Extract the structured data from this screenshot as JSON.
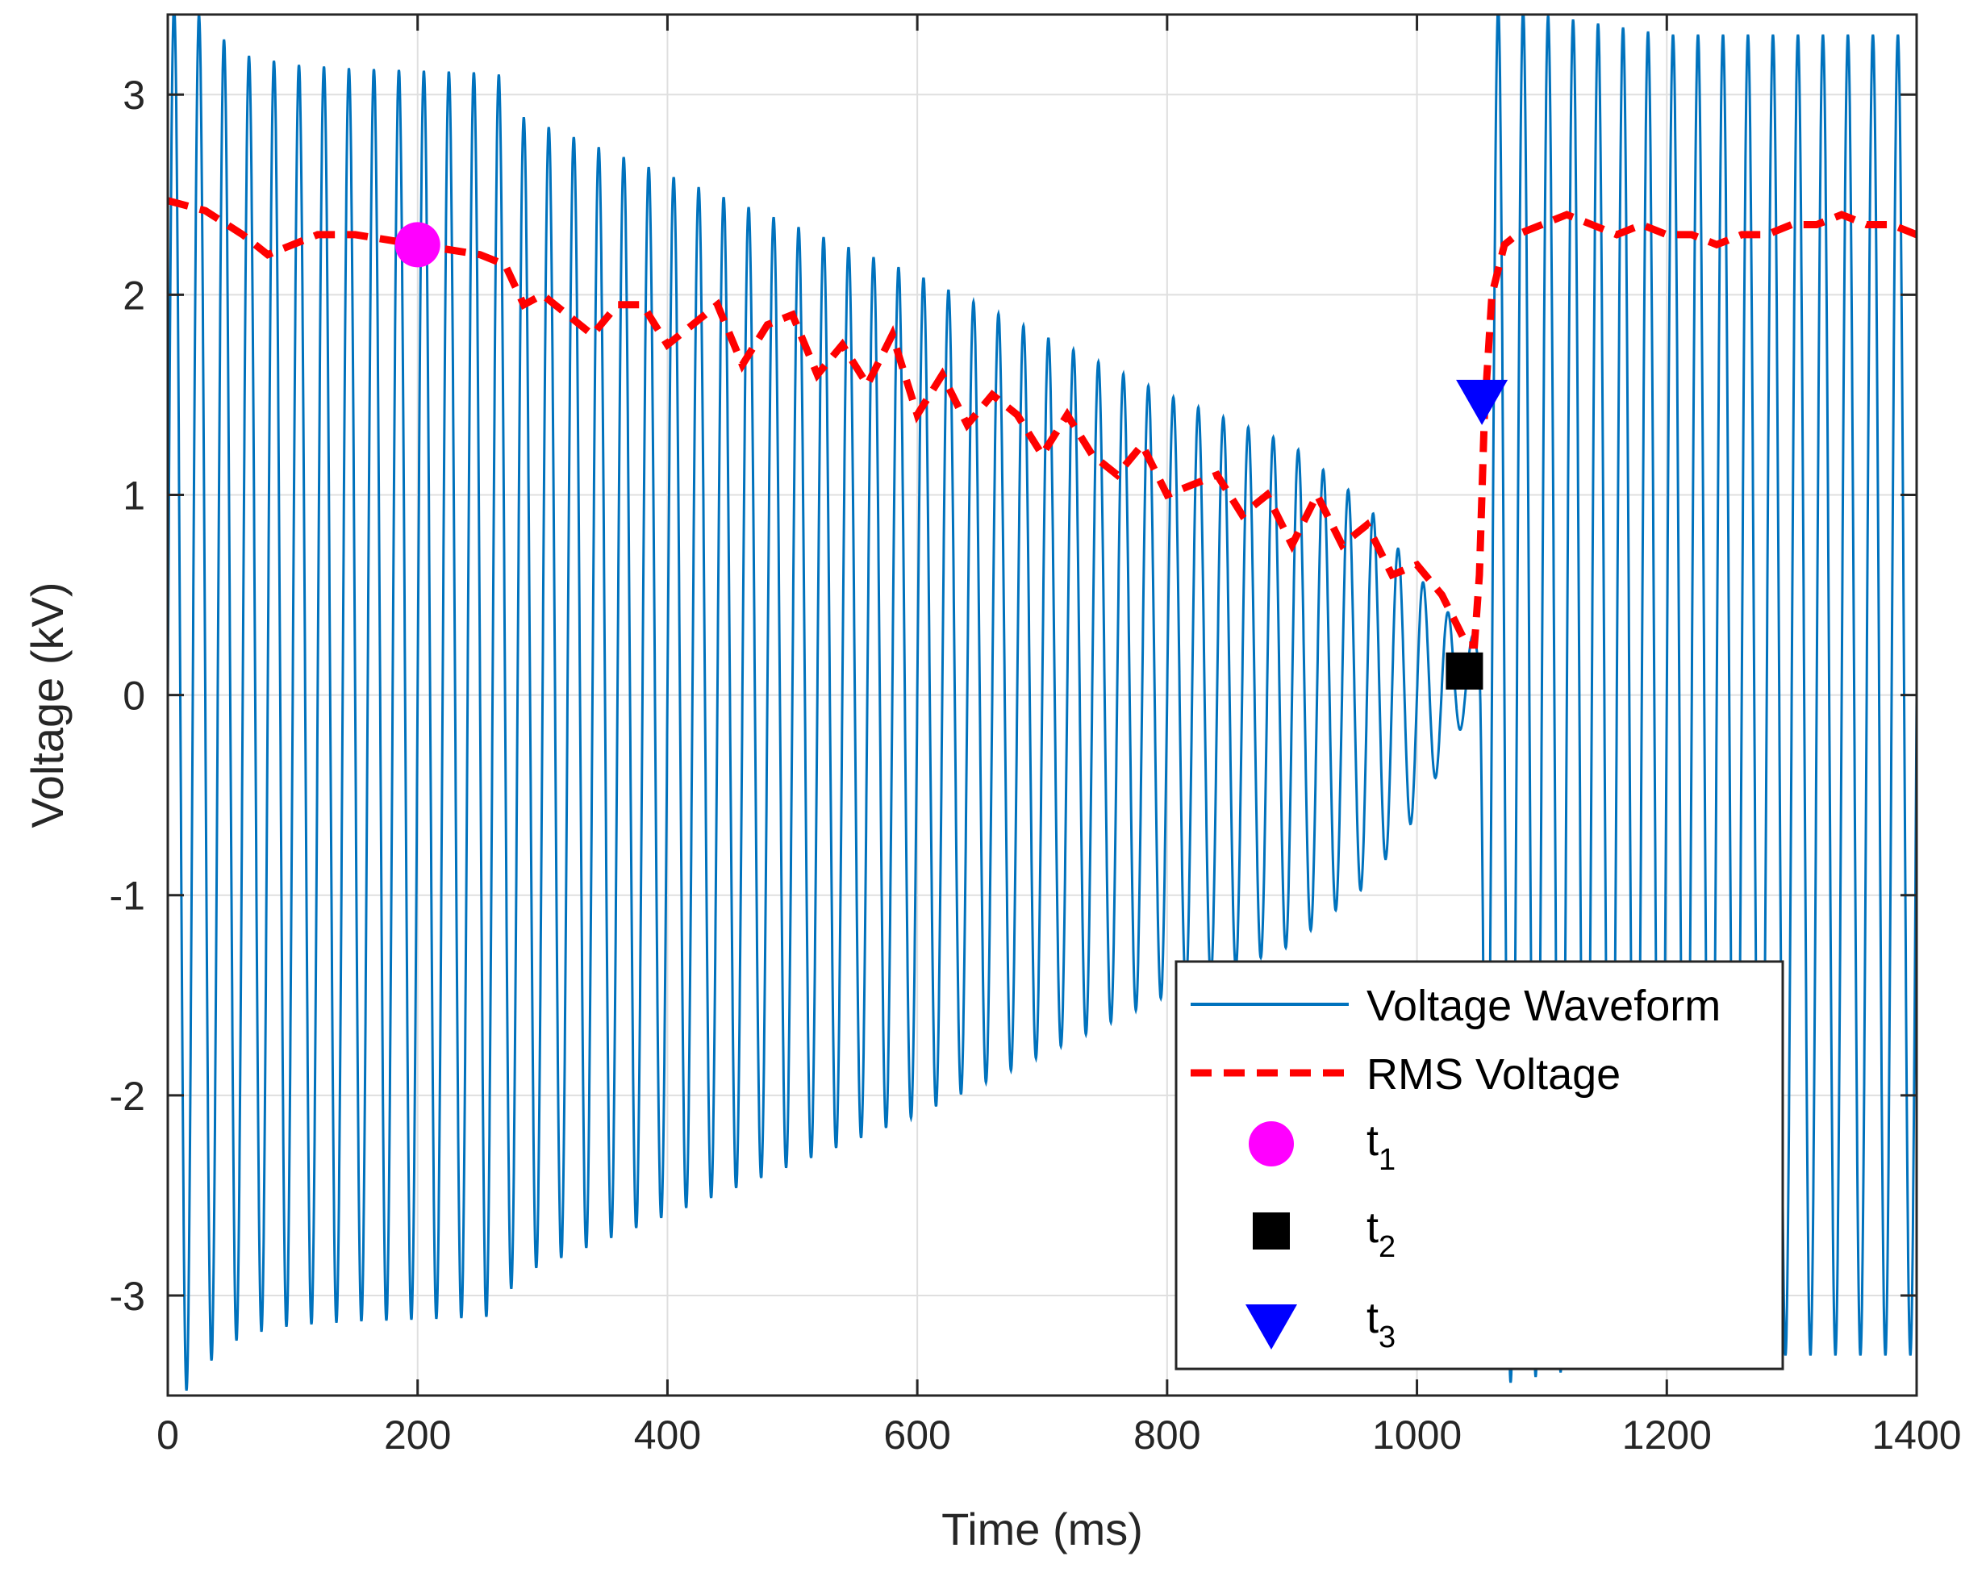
{
  "chart_data": {
    "type": "line",
    "title": "",
    "xlabel": "Time (ms)",
    "ylabel": "Voltage (kV)",
    "xlim": [
      0,
      1400
    ],
    "ylim": [
      -3.5,
      3.4
    ],
    "grid": true,
    "legend_position": "bottom-right",
    "x_ticks": [
      0,
      200,
      400,
      600,
      800,
      1000,
      1200,
      1400
    ],
    "x_tick_labels": [
      "0",
      "200",
      "400",
      "600",
      "800",
      "1000",
      "1200",
      "1400"
    ],
    "y_ticks": [
      -3,
      -2,
      -1,
      0,
      1,
      2,
      3
    ],
    "y_tick_labels": [
      "-3",
      "-2",
      "-1",
      "0",
      "1",
      "2",
      "3"
    ],
    "colors": {
      "waveform": "#0072BD",
      "rms": "#FF0000",
      "t1": "#FF00FF",
      "t2": "#000000",
      "t3": "#0000FF",
      "grid": "#DFDFDF",
      "axes": "#262626"
    },
    "series": [
      {
        "name": "Voltage Waveform",
        "style": "solid",
        "frequency_hz": 50,
        "amplitude_envelope_kv": {
          "x": [
            0,
            10,
            20,
            30,
            60,
            100,
            150,
            200,
            250,
            265,
            280,
            400,
            600,
            800,
            900,
            960,
            1000,
            1030,
            1042,
            1050,
            1056,
            1065,
            1100,
            1200,
            1300,
            1400
          ],
          "y": [
            3.4,
            3.5,
            3.45,
            3.35,
            3.2,
            3.15,
            3.13,
            3.12,
            3.11,
            3.1,
            2.9,
            2.6,
            2.1,
            1.5,
            1.25,
            0.95,
            0.6,
            0.3,
            0.2,
            0.2,
            3.2,
            3.45,
            3.4,
            3.3,
            3.3,
            3.3
          ]
        },
        "dc_offset_kv": {
          "x": [
            0,
            1000,
            1040,
            1050,
            1060,
            1400
          ],
          "y": [
            0,
            0,
            0.1,
            0.1,
            0,
            0
          ]
        }
      },
      {
        "name": "RMS Voltage",
        "style": "dashed",
        "x": [
          0,
          30,
          60,
          80,
          100,
          120,
          150,
          200,
          250,
          270,
          285,
          300,
          320,
          340,
          360,
          380,
          400,
          420,
          440,
          460,
          480,
          500,
          520,
          540,
          560,
          580,
          600,
          620,
          640,
          660,
          680,
          700,
          720,
          740,
          760,
          780,
          800,
          820,
          840,
          860,
          880,
          900,
          920,
          940,
          960,
          980,
          1000,
          1020,
          1040,
          1046,
          1050,
          1054,
          1060,
          1070,
          1080,
          1100,
          1120,
          1140,
          1160,
          1180,
          1200,
          1220,
          1240,
          1260,
          1280,
          1300,
          1320,
          1340,
          1360,
          1380,
          1400
        ],
        "y": [
          2.47,
          2.42,
          2.3,
          2.2,
          2.25,
          2.3,
          2.3,
          2.25,
          2.2,
          2.15,
          1.95,
          2.0,
          1.9,
          1.8,
          1.95,
          1.95,
          1.75,
          1.85,
          1.95,
          1.65,
          1.85,
          1.9,
          1.6,
          1.75,
          1.55,
          1.8,
          1.4,
          1.6,
          1.35,
          1.5,
          1.4,
          1.2,
          1.4,
          1.2,
          1.1,
          1.25,
          1.0,
          1.05,
          1.1,
          0.9,
          1.0,
          0.75,
          1.0,
          0.75,
          0.85,
          0.6,
          0.65,
          0.5,
          0.25,
          0.25,
          0.6,
          1.4,
          2.0,
          2.25,
          2.3,
          2.35,
          2.4,
          2.35,
          2.3,
          2.35,
          2.3,
          2.3,
          2.25,
          2.3,
          2.3,
          2.35,
          2.35,
          2.4,
          2.35,
          2.35,
          2.3
        ]
      }
    ],
    "markers": [
      {
        "name": "t1",
        "subscript": "1",
        "shape": "circle",
        "x": 200,
        "y": 2.25
      },
      {
        "name": "t2",
        "subscript": "2",
        "shape": "square",
        "x": 1038,
        "y": 0.12
      },
      {
        "name": "t3",
        "subscript": "3",
        "shape": "triangle-down",
        "x": 1052,
        "y": 1.47
      }
    ],
    "legend": {
      "entries": [
        "Voltage Waveform",
        "RMS Voltage",
        "t1",
        "t2",
        "t3"
      ],
      "label_base": "t"
    }
  }
}
